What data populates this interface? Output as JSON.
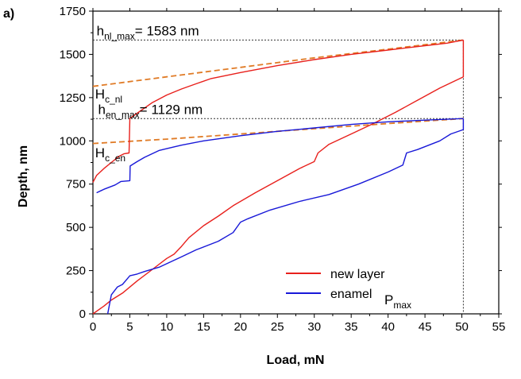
{
  "panel_label": "a)",
  "chart_data": {
    "type": "line",
    "xlabel": "Load, mN",
    "ylabel": "Depth, nm",
    "xlim": [
      0,
      55
    ],
    "ylim": [
      0,
      1750
    ],
    "xticks": [
      0,
      5,
      10,
      15,
      20,
      25,
      30,
      35,
      40,
      45,
      50,
      55
    ],
    "yticks": [
      0,
      250,
      500,
      750,
      1000,
      1250,
      1500,
      1750
    ],
    "grid": false,
    "legend_placement": "bottom-right",
    "colors": {
      "new_layer": "#e8201c",
      "enamel": "#1818d8",
      "fit": "#e07b26",
      "ref": "#333333"
    },
    "series": [
      {
        "name": "new layer",
        "color": "#e8201c",
        "loading": [
          [
            0,
            760
          ],
          [
            0.5,
            800
          ],
          [
            1.5,
            840
          ],
          [
            2.5,
            875
          ],
          [
            3.5,
            910
          ],
          [
            4.2,
            925
          ],
          [
            4.9,
            930
          ],
          [
            5,
            1130
          ],
          [
            6,
            1160
          ],
          [
            8,
            1220
          ],
          [
            10,
            1265
          ],
          [
            12,
            1300
          ],
          [
            14,
            1330
          ],
          [
            16,
            1360
          ],
          [
            20,
            1395
          ],
          [
            25,
            1435
          ],
          [
            30,
            1470
          ],
          [
            35,
            1500
          ],
          [
            40,
            1525
          ],
          [
            45,
            1550
          ],
          [
            48,
            1565
          ],
          [
            50.2,
            1583
          ]
        ],
        "unloading": [
          [
            50.2,
            1583
          ],
          [
            50.2,
            1370
          ],
          [
            47,
            1305
          ],
          [
            44,
            1235
          ],
          [
            41,
            1165
          ],
          [
            38,
            1100
          ],
          [
            35,
            1040
          ],
          [
            32,
            980
          ],
          [
            30.5,
            930
          ],
          [
            30,
            880
          ],
          [
            28,
            840
          ],
          [
            25,
            770
          ],
          [
            22,
            700
          ],
          [
            19,
            625
          ],
          [
            17,
            565
          ],
          [
            15,
            510
          ],
          [
            13,
            440
          ],
          [
            12,
            390
          ],
          [
            11,
            345
          ],
          [
            10,
            320
          ],
          [
            8,
            255
          ],
          [
            6,
            190
          ],
          [
            4,
            120
          ],
          [
            2.5,
            80
          ],
          [
            1.5,
            45
          ],
          [
            0,
            0
          ]
        ]
      },
      {
        "name": "enamel",
        "color": "#1818d8",
        "loading": [
          [
            0.5,
            700
          ],
          [
            1.5,
            720
          ],
          [
            3,
            745
          ],
          [
            3.8,
            765
          ],
          [
            5,
            770
          ],
          [
            5.05,
            855
          ],
          [
            6,
            880
          ],
          [
            7,
            905
          ],
          [
            8,
            925
          ],
          [
            9,
            945
          ],
          [
            10,
            955
          ],
          [
            12,
            975
          ],
          [
            15,
            1000
          ],
          [
            20,
            1030
          ],
          [
            25,
            1055
          ],
          [
            30,
            1075
          ],
          [
            35,
            1095
          ],
          [
            40,
            1110
          ],
          [
            45,
            1120
          ],
          [
            48,
            1125
          ],
          [
            50.2,
            1129
          ]
        ],
        "unloading": [
          [
            50.2,
            1129
          ],
          [
            50.2,
            1065
          ],
          [
            48.5,
            1040
          ],
          [
            47,
            1000
          ],
          [
            44,
            950
          ],
          [
            42.5,
            930
          ],
          [
            42,
            860
          ],
          [
            40,
            820
          ],
          [
            36,
            750
          ],
          [
            32,
            690
          ],
          [
            28,
            650
          ],
          [
            24,
            600
          ],
          [
            21,
            550
          ],
          [
            20,
            530
          ],
          [
            19,
            470
          ],
          [
            17,
            420
          ],
          [
            14,
            370
          ],
          [
            12,
            330
          ],
          [
            10,
            290
          ],
          [
            9,
            270
          ],
          [
            7,
            245
          ],
          [
            6,
            230
          ],
          [
            5,
            220
          ],
          [
            4.8,
            210
          ],
          [
            4,
            170
          ],
          [
            3.3,
            155
          ],
          [
            2.5,
            110
          ],
          [
            2,
            0
          ]
        ]
      }
    ],
    "fit_curves": [
      {
        "label": "H_c_nl",
        "points": [
          [
            0,
            1315
          ],
          [
            10,
            1370
          ],
          [
            20,
            1425
          ],
          [
            30,
            1480
          ],
          [
            40,
            1530
          ],
          [
            50.2,
            1583
          ]
        ]
      },
      {
        "label": "H_c_en",
        "points": [
          [
            0,
            985
          ],
          [
            10,
            1010
          ],
          [
            20,
            1040
          ],
          [
            30,
            1070
          ],
          [
            40,
            1100
          ],
          [
            50.2,
            1129
          ]
        ]
      }
    ],
    "reference_lines": [
      {
        "orientation": "horizontal",
        "value": 1583
      },
      {
        "orientation": "horizontal",
        "value": 1129
      },
      {
        "orientation": "vertical",
        "value": 50.2
      }
    ],
    "annotations": {
      "h_nl_max": {
        "main": "h",
        "sub": "nl_max",
        "rest": "= 1583 nm",
        "x": 0.5,
        "y": 1610
      },
      "h_en_max": {
        "main": "h",
        "sub": "en_max",
        "rest": "= 1129 nm",
        "x": 0.7,
        "y": 1155
      },
      "hc_nl": {
        "main": "H",
        "sub": "c_nl",
        "rest": "",
        "x": 0.3,
        "y": 1245
      },
      "hc_en": {
        "main": "H",
        "sub": "c_en",
        "rest": "",
        "x": 0.3,
        "y": 905
      },
      "p_max": {
        "main": "P",
        "sub": "max",
        "rest": "",
        "x": 39.5,
        "y": 55
      }
    }
  }
}
